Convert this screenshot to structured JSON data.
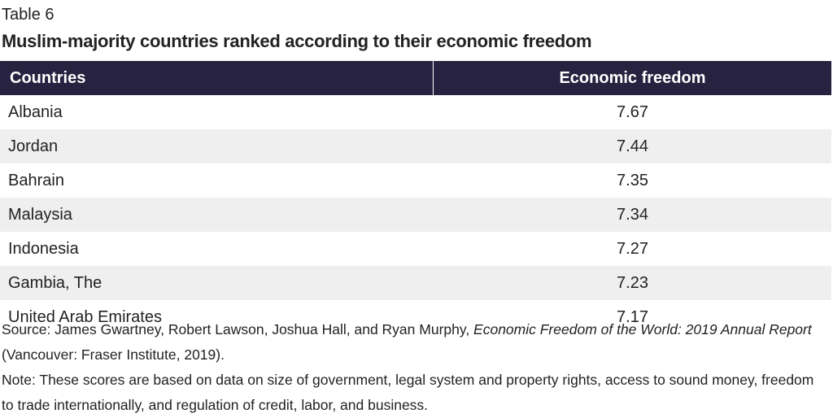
{
  "header": {
    "label": "Table 6",
    "title": "Muslim-majority countries ranked according to their economic freedom"
  },
  "table": {
    "columns": [
      "Countries",
      "Economic freedom"
    ],
    "rows": [
      [
        "Albania",
        7.67
      ],
      [
        "Jordan",
        7.44
      ],
      [
        "Bahrain",
        7.35
      ],
      [
        "Malaysia",
        7.34
      ],
      [
        "Indonesia",
        7.27
      ],
      [
        "Gambia, The",
        7.23
      ],
      [
        "United Arab Emirates",
        7.17
      ]
    ]
  },
  "source": {
    "prefix": "Source: James Gwartney, Robert Lawson, Joshua Hall, and Ryan Murphy, ",
    "title": "Economic Freedom of the World: 2019 Annual Report",
    "suffix": " (Vancouver: Fraser Institute, 2019)."
  },
  "note": "Note: These scores are based on data on size of government, legal system and property rights, access to sound money, freedom to trade internationally, and regulation of credit, labor, and business."
}
